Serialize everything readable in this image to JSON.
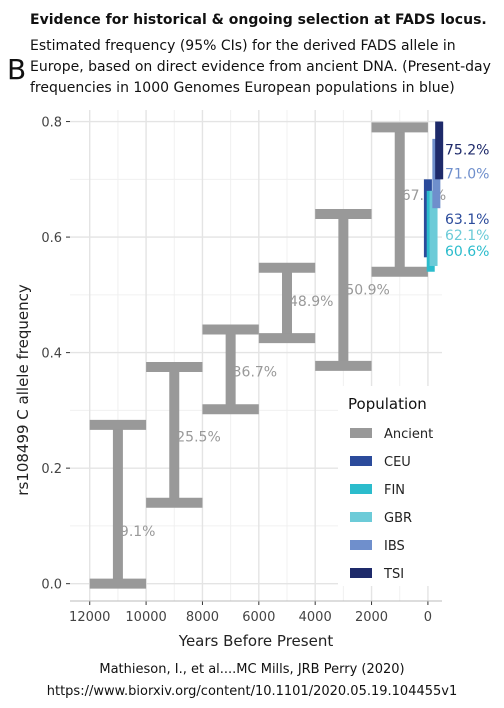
{
  "header": {
    "title": "Evidence for historical & ongoing selection at FADS locus.",
    "subtitle_lines": [
      "Estimated frequency (95% CIs) for the derived FADS allele in",
      "Europe, based on direct evidence from ancient DNA. (Present-day",
      "frequencies in 1000 Genomes European populations in blue)"
    ],
    "panel_letter": "B"
  },
  "citation": {
    "line1": "Mathieson, I., et al....MC Mills, JRB Perry (2020)",
    "line2": "https://www.biorxiv.org/content/10.1101/2020.05.19.104455v1"
  },
  "chart_data": {
    "type": "errorbar",
    "xlabel": "Years Before Present",
    "ylabel": "rs108499 C allele frequency",
    "x_reversed": true,
    "xlim": [
      12700,
      -500
    ],
    "ylim": [
      -0.03,
      0.82
    ],
    "x_ticks": [
      12000,
      10000,
      8000,
      6000,
      4000,
      2000,
      0
    ],
    "x_tick_labels": [
      "12000",
      "10000",
      "8000",
      "6000",
      "4000",
      "2000",
      "0"
    ],
    "y_ticks": [
      0.0,
      0.2,
      0.4,
      0.6,
      0.8
    ],
    "y_tick_labels": [
      "0.0",
      "0.2",
      "0.4",
      "0.6",
      "0.8"
    ],
    "grid": true,
    "legend": {
      "title": "Population",
      "placement": "bottom-right",
      "entries": [
        {
          "name": "Ancient",
          "color": "#999999"
        },
        {
          "name": "CEU",
          "color": "#2b4b9b"
        },
        {
          "name": "FIN",
          "color": "#2bbccc"
        },
        {
          "name": "GBR",
          "color": "#6ccbd8"
        },
        {
          "name": "IBS",
          "color": "#6f8fcc"
        },
        {
          "name": "TSI",
          "color": "#1e2a6a"
        }
      ]
    },
    "ancient": [
      {
        "x_start": 12000,
        "x_end": 10000,
        "low": 0.0,
        "high": 0.275,
        "label": "9.1%",
        "label_value": 0.091
      },
      {
        "x_start": 10000,
        "x_end": 8000,
        "low": 0.14,
        "high": 0.375,
        "label": "25.5%",
        "label_value": 0.255
      },
      {
        "x_start": 8000,
        "x_end": 6000,
        "low": 0.302,
        "high": 0.44,
        "label": "36.7%",
        "label_value": 0.367
      },
      {
        "x_start": 6000,
        "x_end": 4000,
        "low": 0.425,
        "high": 0.547,
        "label": "48.9%",
        "label_value": 0.489
      },
      {
        "x_start": 4000,
        "x_end": 2000,
        "low": 0.377,
        "high": 0.64,
        "label": "50.9%",
        "label_value": 0.509
      },
      {
        "x_start": 2000,
        "x_end": 0,
        "low": 0.54,
        "high": 0.79,
        "label": "67.3%",
        "label_value": 0.673
      }
    ],
    "modern": [
      {
        "name": "CEU",
        "color": "#2b4b9b",
        "x": 0,
        "low": 0.565,
        "high": 0.7,
        "label": "63.1%",
        "label_value": 0.631
      },
      {
        "name": "FIN",
        "color": "#2bbccc",
        "x": -100,
        "low": 0.54,
        "high": 0.68,
        "label": "60.6%",
        "label_value": 0.606
      },
      {
        "name": "GBR",
        "color": "#6ccbd8",
        "x": -200,
        "low": 0.55,
        "high": 0.68,
        "label": "62.1%",
        "label_value": 0.621
      },
      {
        "name": "IBS",
        "color": "#6f8fcc",
        "x": -300,
        "low": 0.65,
        "high": 0.77,
        "label": "71.0%",
        "label_value": 0.71
      },
      {
        "name": "TSI",
        "color": "#1e2a6a",
        "x": -400,
        "low": 0.7,
        "high": 0.8,
        "label": "75.2%",
        "label_value": 0.752
      }
    ]
  }
}
